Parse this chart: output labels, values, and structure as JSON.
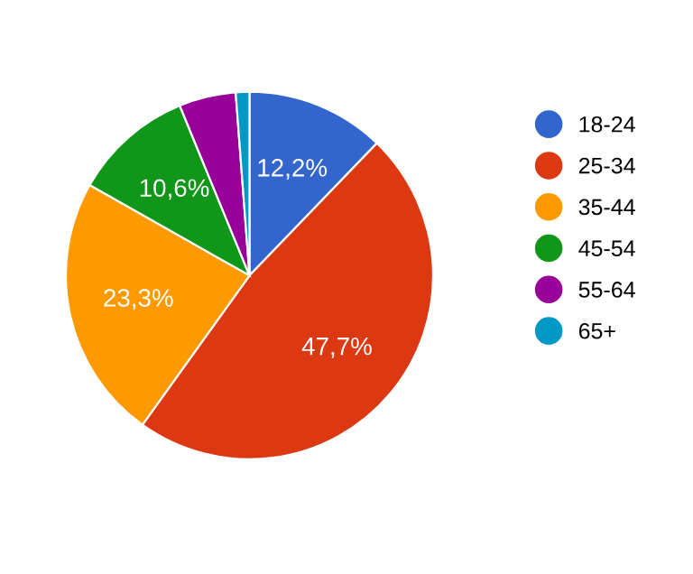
{
  "chart_data": {
    "type": "pie",
    "categories": [
      "18-24",
      "25-34",
      "35-44",
      "45-54",
      "55-64",
      "65+"
    ],
    "values": [
      12.2,
      47.7,
      23.3,
      10.6,
      5.0,
      1.2
    ],
    "colors": [
      "#3366cc",
      "#dc3912",
      "#ff9900",
      "#109618",
      "#990099",
      "#0099c6"
    ],
    "value_labels": [
      "12,2%",
      "47,7%",
      "23,3%",
      "10,6%",
      null,
      null
    ],
    "legend": "right"
  }
}
